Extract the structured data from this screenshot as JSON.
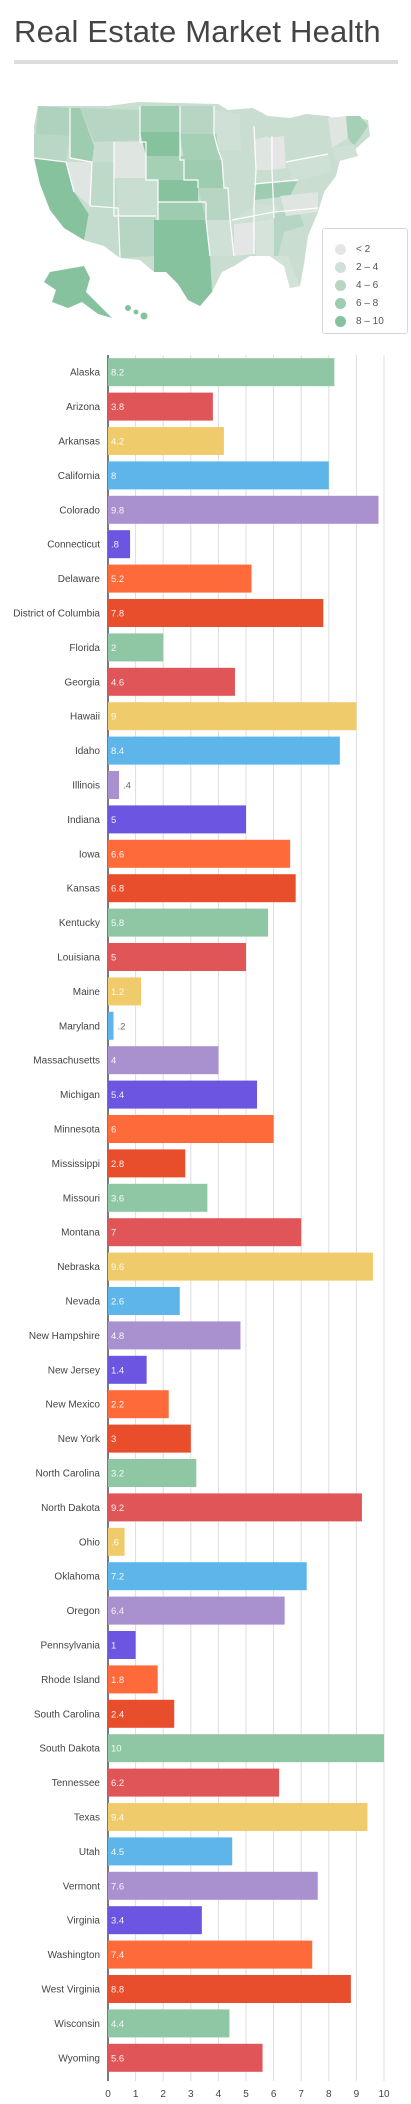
{
  "title": "Real Estate Market Health",
  "legend": {
    "items": [
      {
        "label": "< 2",
        "color": "#e3e6e4"
      },
      {
        "label": "2 – 4",
        "color": "#cfe0d6"
      },
      {
        "label": "4 – 6",
        "color": "#b6d6c3"
      },
      {
        "label": "6 – 8",
        "color": "#9dccb0"
      },
      {
        "label": "8 – 10",
        "color": "#86c29e"
      }
    ]
  },
  "chart_data": {
    "type": "bar",
    "orientation": "horizontal",
    "xlim": [
      0,
      10
    ],
    "xticks": [
      "0",
      "1",
      "2",
      "3",
      "4",
      "5",
      "6",
      "7",
      "8",
      "9",
      "10"
    ],
    "grid": true,
    "categories": [
      "Alaska",
      "Arizona",
      "Arkansas",
      "California",
      "Colorado",
      "Connecticut",
      "Delaware",
      "District of Columbia",
      "Florida",
      "Georgia",
      "Hawaii",
      "Idaho",
      "Illinois",
      "Indiana",
      "Iowa",
      "Kansas",
      "Kentucky",
      "Louisiana",
      "Maine",
      "Maryland",
      "Massachusetts",
      "Michigan",
      "Minnesota",
      "Mississippi",
      "Missouri",
      "Montana",
      "Nebraska",
      "Nevada",
      "New Hampshire",
      "New Jersey",
      "New Mexico",
      "New York",
      "North Carolina",
      "North Dakota",
      "Ohio",
      "Oklahoma",
      "Oregon",
      "Pennsylvania",
      "Rhode Island",
      "South Carolina",
      "South Dakota",
      "Tennessee",
      "Texas",
      "Utah",
      "Vermont",
      "Virginia",
      "Washington",
      "West Virginia",
      "Wisconsin",
      "Wyoming"
    ],
    "values": [
      8.2,
      3.8,
      4.2,
      8,
      9.8,
      0.8,
      5.2,
      7.8,
      2,
      4.6,
      9,
      8.4,
      0.4,
      5,
      6.6,
      6.8,
      5.8,
      5,
      1.2,
      0.2,
      4,
      5.4,
      6,
      2.8,
      3.6,
      7,
      9.6,
      2.6,
      4.8,
      1.4,
      2.2,
      3,
      3.2,
      9.2,
      0.6,
      7.2,
      6.4,
      1,
      1.8,
      2.4,
      10,
      6.2,
      9.4,
      4.5,
      7.6,
      3.4,
      7.4,
      8.8,
      4.4,
      5.6
    ],
    "value_labels": [
      "8.2",
      "3.8",
      "4.2",
      "8",
      "9.8",
      ".8",
      "5.2",
      "7.8",
      "2",
      "4.6",
      "9",
      "8.4",
      ".4",
      "5",
      "6.6",
      "6.8",
      "5.8",
      "5",
      "1.2",
      ".2",
      "4",
      "5.4",
      "6",
      "2.8",
      "3.6",
      "7",
      "9.6",
      "2.6",
      "4.8",
      "1.4",
      "2.2",
      "3",
      "3.2",
      "9.2",
      ".6",
      "7.2",
      "6.4",
      "1",
      "1.8",
      "2.4",
      "10",
      "6.2",
      "9.4",
      "4.5",
      "7.6",
      "3.4",
      "7.4",
      "8.8",
      "4.4",
      "5.6"
    ],
    "colors": [
      "#8fc7a5",
      "#e05558",
      "#f0cb6b",
      "#5eb5e9",
      "#a990ce",
      "#6c55e0",
      "#ff6a3a",
      "#e84e2c"
    ]
  }
}
